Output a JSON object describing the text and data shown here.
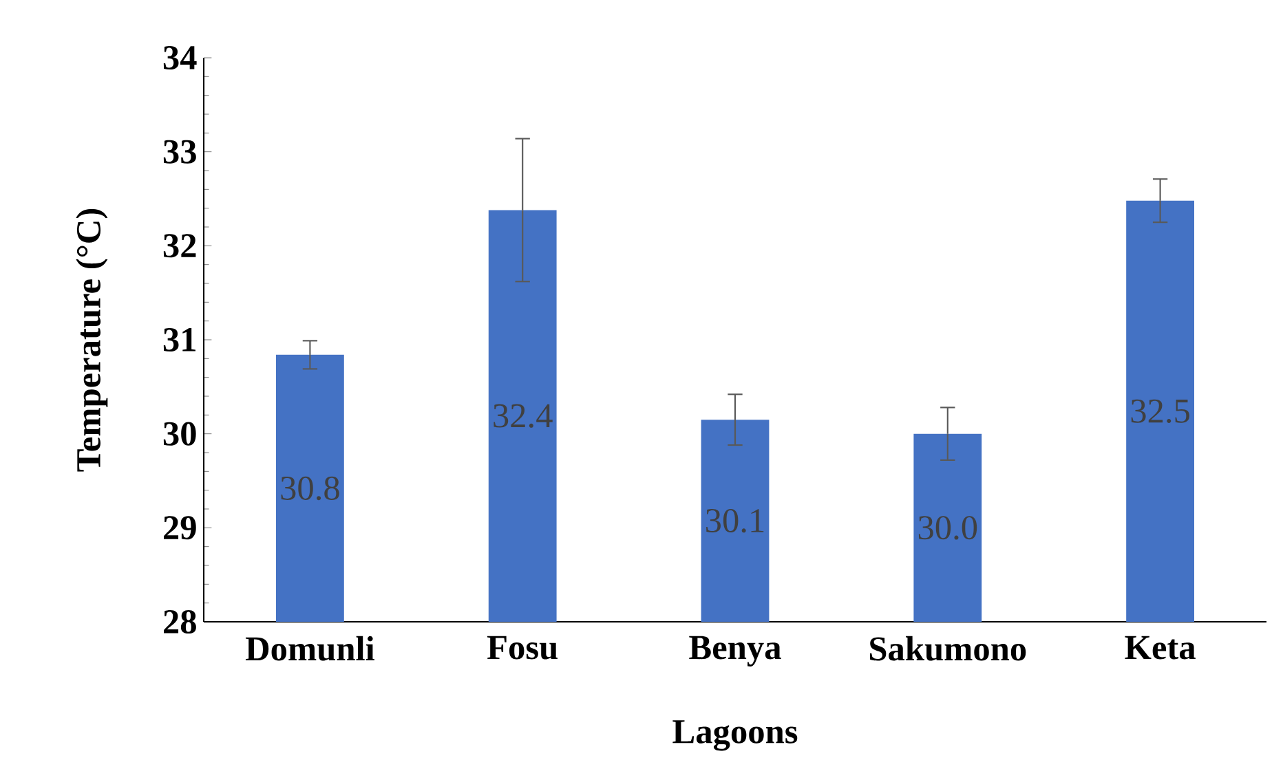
{
  "chart_data": {
    "type": "bar",
    "xlabel": "Lagoons",
    "ylabel": "Temperature (°C)",
    "categories": [
      "Domunli",
      "Fosu",
      "Benya",
      "Sakumono",
      "Keta"
    ],
    "values": [
      30.84,
      32.38,
      30.15,
      30.0,
      32.48
    ],
    "errors": [
      0.15,
      0.76,
      0.27,
      0.28,
      0.23
    ],
    "value_labels": [
      "30.8",
      "32.4",
      "30.1",
      "30.0",
      "32.5"
    ],
    "color": "#4472c4",
    "ylim": [
      28,
      34
    ],
    "yticks": [
      28,
      29,
      30,
      31,
      32,
      33,
      34
    ],
    "grid": false
  }
}
